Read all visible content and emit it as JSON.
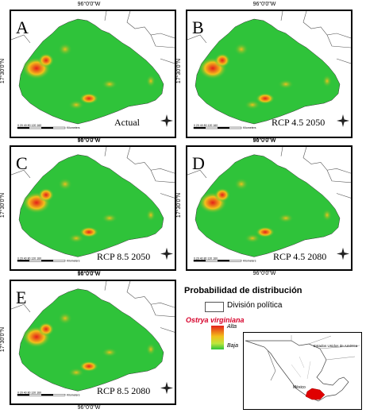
{
  "coords": {
    "lon": "96°0'0\"W",
    "lat": "17°30'0\"N"
  },
  "panels": [
    {
      "letter": "A",
      "label": "Actual"
    },
    {
      "letter": "B",
      "label": "RCP 4.5 2050"
    },
    {
      "letter": "C",
      "label": "RCP 8.5 2050"
    },
    {
      "letter": "D",
      "label": "RCP 4.5 2080"
    },
    {
      "letter": "E",
      "label": "RCP 8.5 2080"
    }
  ],
  "scale": {
    "ticks": "0  20  40      80      120     160",
    "unit": "Kilometers"
  },
  "legend": {
    "title": "Probabilidad de distribución",
    "boundary": "División política",
    "species": "Ostrya virginiana",
    "high": "Alta",
    "low": "Baja"
  },
  "inset": {
    "usa": "Estados Unidos de América",
    "mexico": "México"
  },
  "colors": {
    "low": "#2fc33a",
    "mid": "#f3c01b",
    "high": "#e4201a",
    "boundary": "#555555"
  }
}
